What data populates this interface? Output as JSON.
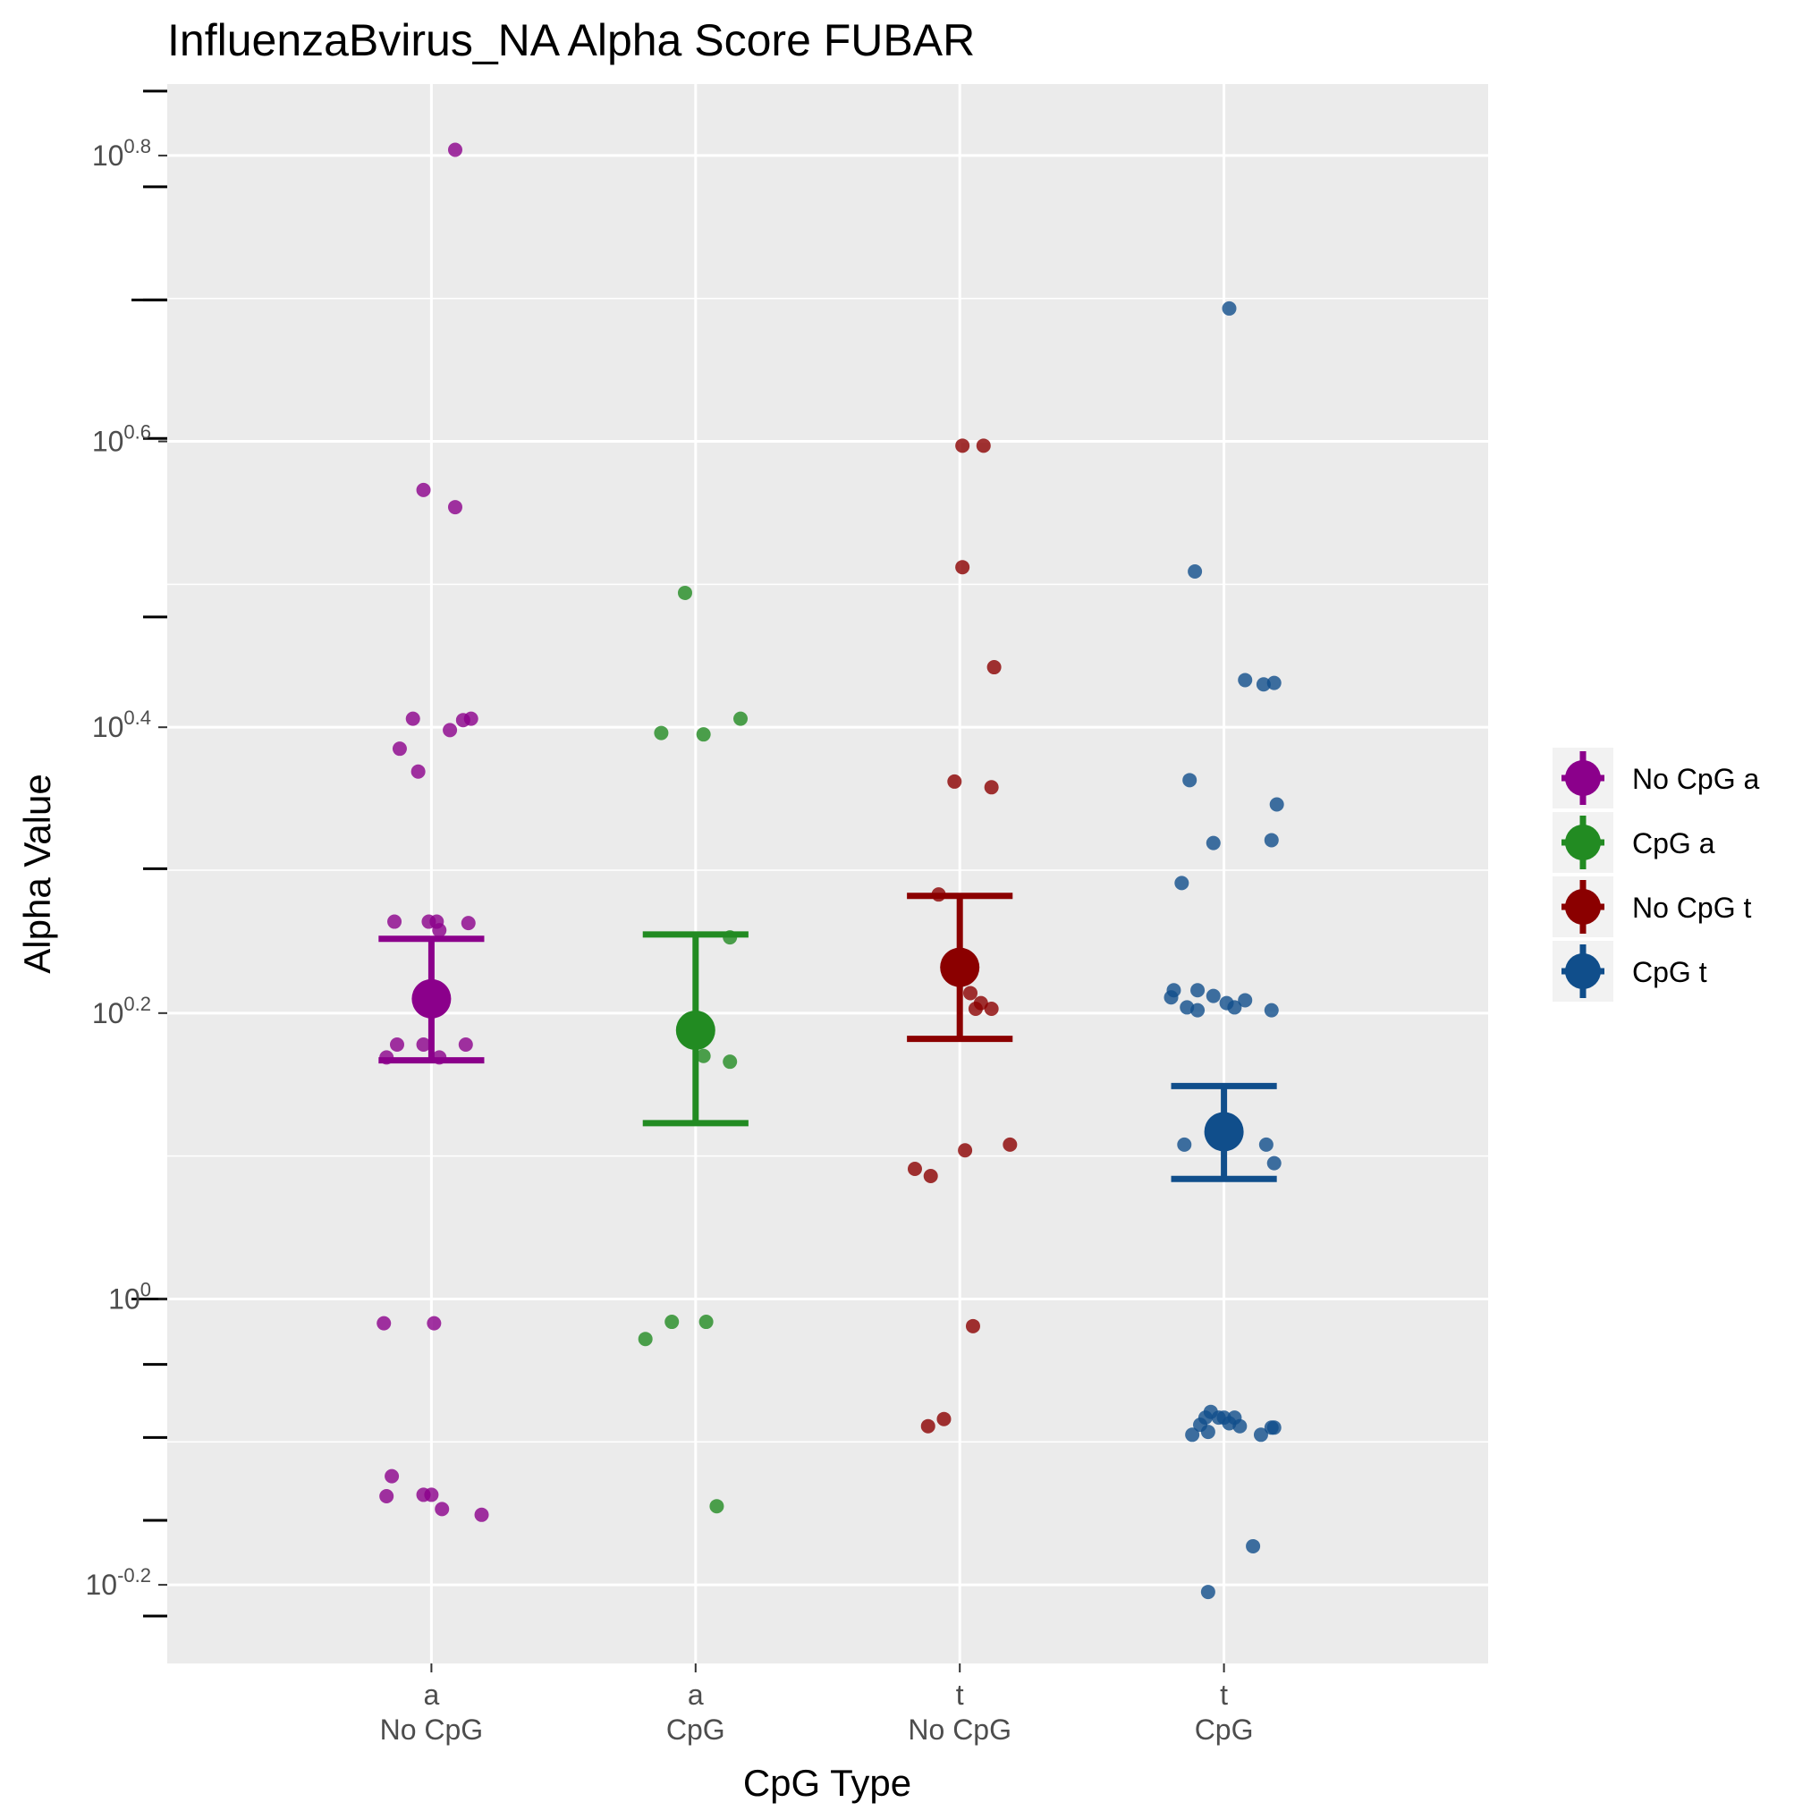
{
  "chart_data": {
    "type": "scatter",
    "title": "InfluenzaBvirus_NA Alpha Score FUBAR",
    "xlabel": "CpG Type",
    "ylabel": "Alpha Value",
    "y_scale": "log10",
    "y_ticks": [
      {
        "exp": -0.2,
        "base": "10",
        "sup": "-0.2"
      },
      {
        "exp": 0,
        "base": "10",
        "sup": "0"
      },
      {
        "exp": 0.2,
        "base": "10",
        "sup": "0.2"
      },
      {
        "exp": 0.4,
        "base": "10",
        "sup": "0.4"
      },
      {
        "exp": 0.6,
        "base": "10",
        "sup": "0.6"
      },
      {
        "exp": 0.8,
        "base": "10",
        "sup": "0.8"
      }
    ],
    "ylim_log10": [
      -0.255,
      0.85
    ],
    "grid": true,
    "legend_position": "right",
    "categories": [
      {
        "line1": "a",
        "line2": "No CpG"
      },
      {
        "line1": "a",
        "line2": "CpG"
      },
      {
        "line1": "t",
        "line2": "No CpG"
      },
      {
        "line1": "t",
        "line2": "CpG"
      }
    ],
    "series": [
      {
        "name": "No CpG a",
        "color": "#8B008B",
        "mean_log10": 0.21,
        "ci_log10": [
          0.167,
          0.252
        ],
        "points": [
          {
            "dx": 0.09,
            "y": 0.804
          },
          {
            "dx": -0.03,
            "y": 0.566
          },
          {
            "dx": 0.09,
            "y": 0.554
          },
          {
            "dx": -0.07,
            "y": 0.406
          },
          {
            "dx": 0.12,
            "y": 0.405
          },
          {
            "dx": 0.15,
            "y": 0.406
          },
          {
            "dx": 0.07,
            "y": 0.398
          },
          {
            "dx": -0.12,
            "y": 0.385
          },
          {
            "dx": -0.05,
            "y": 0.369
          },
          {
            "dx": -0.14,
            "y": 0.264
          },
          {
            "dx": -0.01,
            "y": 0.264
          },
          {
            "dx": 0.02,
            "y": 0.264
          },
          {
            "dx": 0.14,
            "y": 0.263
          },
          {
            "dx": 0.03,
            "y": 0.258
          },
          {
            "dx": -0.13,
            "y": 0.178
          },
          {
            "dx": -0.03,
            "y": 0.178
          },
          {
            "dx": 0.13,
            "y": 0.178
          },
          {
            "dx": -0.17,
            "y": 0.169
          },
          {
            "dx": 0.03,
            "y": 0.169
          },
          {
            "dx": -0.18,
            "y": -0.017
          },
          {
            "dx": 0.01,
            "y": -0.017
          },
          {
            "dx": -0.15,
            "y": -0.124
          },
          {
            "dx": -0.17,
            "y": -0.138
          },
          {
            "dx": -0.03,
            "y": -0.137
          },
          {
            "dx": 0.0,
            "y": -0.137
          },
          {
            "dx": 0.04,
            "y": -0.147
          },
          {
            "dx": 0.19,
            "y": -0.151
          }
        ]
      },
      {
        "name": "CpG a",
        "color": "#228B22",
        "mean_log10": 0.188,
        "ci_log10": [
          0.123,
          0.255
        ],
        "points": [
          {
            "dx": -0.04,
            "y": 0.494
          },
          {
            "dx": 0.17,
            "y": 0.406
          },
          {
            "dx": -0.13,
            "y": 0.396
          },
          {
            "dx": 0.03,
            "y": 0.395
          },
          {
            "dx": 0.13,
            "y": 0.253
          },
          {
            "dx": 0.03,
            "y": 0.17
          },
          {
            "dx": 0.13,
            "y": 0.166
          },
          {
            "dx": -0.09,
            "y": -0.016
          },
          {
            "dx": 0.04,
            "y": -0.016
          },
          {
            "dx": -0.19,
            "y": -0.028
          },
          {
            "dx": 0.08,
            "y": -0.145
          }
        ]
      },
      {
        "name": "No CpG t",
        "color": "#8B0000",
        "mean_log10": 0.232,
        "ci_log10": [
          0.182,
          0.282
        ],
        "points": [
          {
            "dx": 0.01,
            "y": 0.597
          },
          {
            "dx": 0.09,
            "y": 0.597
          },
          {
            "dx": 0.01,
            "y": 0.512
          },
          {
            "dx": 0.13,
            "y": 0.442
          },
          {
            "dx": -0.02,
            "y": 0.362
          },
          {
            "dx": 0.12,
            "y": 0.358
          },
          {
            "dx": -0.08,
            "y": 0.283
          },
          {
            "dx": 0.04,
            "y": 0.214
          },
          {
            "dx": 0.08,
            "y": 0.207
          },
          {
            "dx": 0.06,
            "y": 0.203
          },
          {
            "dx": 0.12,
            "y": 0.203
          },
          {
            "dx": 0.02,
            "y": 0.104
          },
          {
            "dx": 0.19,
            "y": 0.108
          },
          {
            "dx": -0.17,
            "y": 0.091
          },
          {
            "dx": -0.11,
            "y": 0.086
          },
          {
            "dx": 0.05,
            "y": -0.019
          },
          {
            "dx": -0.06,
            "y": -0.084
          },
          {
            "dx": -0.12,
            "y": -0.089
          }
        ]
      },
      {
        "name": "CpG t",
        "color": "#104E8B",
        "mean_log10": 0.117,
        "ci_log10": [
          0.084,
          0.149
        ],
        "points": [
          {
            "dx": 0.02,
            "y": 0.693
          },
          {
            "dx": -0.11,
            "y": 0.509
          },
          {
            "dx": 0.08,
            "y": 0.433
          },
          {
            "dx": 0.15,
            "y": 0.43
          },
          {
            "dx": 0.19,
            "y": 0.431
          },
          {
            "dx": -0.13,
            "y": 0.363
          },
          {
            "dx": 0.2,
            "y": 0.346
          },
          {
            "dx": -0.04,
            "y": 0.319
          },
          {
            "dx": 0.18,
            "y": 0.321
          },
          {
            "dx": -0.16,
            "y": 0.291
          },
          {
            "dx": -0.19,
            "y": 0.216
          },
          {
            "dx": -0.1,
            "y": 0.216
          },
          {
            "dx": -0.04,
            "y": 0.212
          },
          {
            "dx": -0.2,
            "y": 0.211
          },
          {
            "dx": 0.01,
            "y": 0.207
          },
          {
            "dx": 0.08,
            "y": 0.209
          },
          {
            "dx": -0.14,
            "y": 0.204
          },
          {
            "dx": -0.1,
            "y": 0.202
          },
          {
            "dx": 0.04,
            "y": 0.204
          },
          {
            "dx": 0.18,
            "y": 0.202
          },
          {
            "dx": -0.15,
            "y": 0.108
          },
          {
            "dx": 0.16,
            "y": 0.108
          },
          {
            "dx": 0.19,
            "y": 0.095
          },
          {
            "dx": -0.07,
            "y": -0.083
          },
          {
            "dx": -0.05,
            "y": -0.079
          },
          {
            "dx": -0.02,
            "y": -0.083
          },
          {
            "dx": 0.0,
            "y": -0.083
          },
          {
            "dx": 0.04,
            "y": -0.083
          },
          {
            "dx": -0.09,
            "y": -0.088
          },
          {
            "dx": 0.02,
            "y": -0.087
          },
          {
            "dx": 0.06,
            "y": -0.089
          },
          {
            "dx": -0.06,
            "y": -0.093
          },
          {
            "dx": -0.12,
            "y": -0.095
          },
          {
            "dx": 0.14,
            "y": -0.095
          },
          {
            "dx": 0.18,
            "y": -0.09
          },
          {
            "dx": 0.19,
            "y": -0.09
          },
          {
            "dx": 0.11,
            "y": -0.173
          },
          {
            "dx": -0.06,
            "y": -0.205
          }
        ]
      }
    ]
  }
}
